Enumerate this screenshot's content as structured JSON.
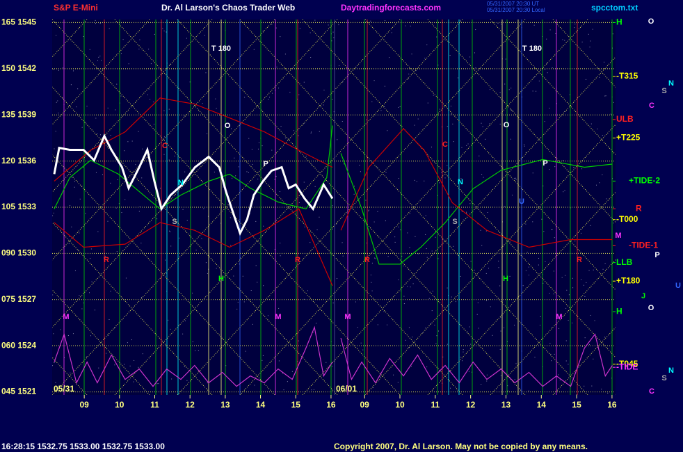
{
  "chart_data": {
    "type": "line",
    "header": {
      "instrument": "S&P E-Mini",
      "title": "Dr. Al Larson's Chaos Trader Web",
      "site": "Daytradingforecasts.com",
      "stamp_ut": "05/31/2007 20:30 UT",
      "stamp_local": "05/31/2007 20:30 Local",
      "file": "spcctom.txt"
    },
    "ylim": [
      1520.8,
      1545.2
    ],
    "yticks": [
      {
        "value": 1545,
        "label": "165 1545"
      },
      {
        "value": 1542,
        "label": "150 1542"
      },
      {
        "value": 1539,
        "label": "135 1539"
      },
      {
        "value": 1536,
        "label": "120 1536"
      },
      {
        "value": 1533,
        "label": "105 1533"
      },
      {
        "value": 1530,
        "label": "090 1530"
      },
      {
        "value": 1527,
        "label": "075 1527"
      },
      {
        "value": 1524,
        "label": "060 1524"
      },
      {
        "value": 1521,
        "label": "045 1521"
      }
    ],
    "grid": true,
    "days": [
      {
        "label": "05/31",
        "xlim": [
          8.09,
          16.1
        ],
        "xticks": [
          {
            "value": 9,
            "label": "09"
          },
          10,
          11,
          12,
          13,
          14,
          15,
          16
        ],
        "series": [
          {
            "color": "#00cc00",
            "x": [
              8.15,
              8.59,
              9.18,
              9.97,
              10.56,
              11.15,
              11.74,
              12.53,
              13.12,
              13.71,
              14.5,
              15.29,
              15.88,
              16.04
            ],
            "values": [
              1532.89,
              1534.92,
              1536.05,
              1535.15,
              1534.02,
              1532.89,
              1533.79,
              1534.69,
              1535.15,
              1534.24,
              1533.34,
              1532.89,
              1534.92,
              1538.31
            ]
          },
          {
            "color": "#cc0000",
            "x": [
              8.15,
              9.18,
              10.16,
              11.15,
              12.13,
              13.12,
              14.11,
              15.09,
              16.04
            ],
            "values": [
              1534.7,
              1536.7,
              1537.9,
              1540.1,
              1539.7,
              1538.8,
              1537.9,
              1536.7,
              1535.6
            ]
          },
          {
            "color": "#cc0000",
            "x": [
              8.15,
              8.98,
              10.16,
              11.15,
              12.13,
              13.12,
              14.11,
              15.09,
              16.04
            ],
            "values": [
              1532.0,
              1530.4,
              1530.6,
              1532.0,
              1531.5,
              1530.4,
              1531.5,
              1532.9,
              1527.9
            ]
          },
          {
            "color": "#cc33cc",
            "x": [
              8.15,
              8.43,
              8.78,
              9.08,
              9.37,
              9.77,
              10.16,
              10.56,
              10.95,
              11.34,
              11.74,
              12.13,
              12.53,
              12.92,
              13.32,
              13.71,
              14.11,
              14.5,
              14.9,
              15.29,
              15.53,
              15.79,
              16.04
            ],
            "values": [
              1522.94,
              1524.75,
              1521.59,
              1522.94,
              1521.59,
              1523.4,
              1521.81,
              1522.49,
              1521.36,
              1522.49,
              1521.81,
              1522.72,
              1521.59,
              1522.27,
              1521.36,
              1522.04,
              1521.59,
              1522.49,
              1521.81,
              1523.85,
              1525.2,
              1522.04,
              1522.94
            ]
          },
          {
            "color": "#ffffff",
            "x": [
              8.15,
              8.29,
              8.59,
              8.98,
              9.28,
              9.57,
              9.77,
              10.07,
              10.26,
              10.56,
              10.79,
              10.99,
              11.19,
              11.45,
              11.78,
              12.14,
              12.53,
              12.83,
              13.02,
              13.22,
              13.42,
              13.62,
              13.81,
              14.07,
              14.31,
              14.6,
              14.8,
              15.0,
              15.25,
              15.49,
              15.79,
              16.04
            ],
            "values": [
              1535.15,
              1536.86,
              1536.73,
              1536.73,
              1536.05,
              1537.63,
              1536.73,
              1535.6,
              1534.24,
              1535.6,
              1536.73,
              1534.69,
              1532.89,
              1533.79,
              1534.47,
              1535.6,
              1536.28,
              1535.6,
              1534.02,
              1532.66,
              1531.31,
              1532.21,
              1533.79,
              1534.69,
              1535.37,
              1535.6,
              1534.24,
              1534.47,
              1533.57,
              1532.89,
              1534.47,
              1533.57
            ]
          }
        ]
      },
      {
        "label": "06/01",
        "xlim": [
          8.15,
          16.1
        ],
        "xticks": [
          {
            "value": 9,
            "label": "09"
          },
          10,
          11,
          12,
          13,
          14,
          15,
          16
        ],
        "series": [
          {
            "color": "#00cc00",
            "x": [
              8.33,
              8.92,
              9.41,
              10.0,
              10.59,
              11.28,
              12.07,
              12.86,
              14.04,
              15.22,
              16.01
            ],
            "values": [
              1536.5,
              1532.9,
              1529.3,
              1529.3,
              1530.4,
              1532.0,
              1534.2,
              1535.4,
              1536.1,
              1535.6,
              1535.8
            ]
          },
          {
            "color": "#cc0000",
            "x": [
              8.33,
              9.12,
              10.1,
              10.69,
              11.48,
              12.46,
              13.65,
              14.83,
              16.01
            ],
            "values": [
              1531.5,
              1535.6,
              1538.1,
              1536.7,
              1533.3,
              1531.5,
              1530.4,
              1530.9,
              1530.9
            ]
          },
          {
            "color": "#cc33cc",
            "x": [
              8.33,
              8.63,
              8.92,
              9.31,
              9.71,
              10.1,
              10.5,
              10.89,
              11.28,
              11.68,
              12.07,
              12.46,
              12.86,
              13.25,
              13.65,
              14.04,
              14.43,
              14.83,
              15.22,
              15.52,
              15.81,
              16.01
            ],
            "values": [
              1524.5,
              1521.81,
              1522.94,
              1521.59,
              1523.17,
              1522.04,
              1523.4,
              1521.81,
              1522.72,
              1521.59,
              1522.94,
              1521.81,
              1522.49,
              1521.59,
              1522.27,
              1521.36,
              1522.04,
              1521.36,
              1523.85,
              1524.75,
              1522.04,
              1522.72
            ]
          }
        ]
      }
    ],
    "levels": [
      {
        "text": "H",
        "value": 1545.0,
        "color": "#00ff00"
      },
      {
        "text": "-T315",
        "value": 1541.5,
        "color": "#ffff00"
      },
      {
        "text": "ULB",
        "value": 1538.7,
        "color": "#ff2020"
      },
      {
        "text": "+T225",
        "value": 1537.5,
        "color": "#ffff00"
      },
      {
        "text": "+TIDE-2",
        "value": 1534.7,
        "color": "#00ff00"
      },
      {
        "text": "R",
        "value": 1532.9,
        "color": "#ff2020"
      },
      {
        "text": "-T000",
        "value": 1532.2,
        "color": "#ffff00"
      },
      {
        "text": "-TIDE-1",
        "value": 1530.5,
        "color": "#ff2020"
      },
      {
        "text": "LLB",
        "value": 1529.4,
        "color": "#00ff00"
      },
      {
        "text": "+T180",
        "value": 1528.2,
        "color": "#ffff00"
      },
      {
        "text": "H",
        "value": 1526.2,
        "color": "#00ff00"
      },
      {
        "text": "-T045",
        "value": 1522.8,
        "color": "#ffff00"
      },
      {
        "text": "-TIDE",
        "value": 1522.6,
        "color": "#ff33ff"
      }
    ],
    "annotations": [
      {
        "text": "T 180",
        "color": "#ffffff"
      },
      {
        "text": "T 180",
        "color": "#ffffff"
      },
      {
        "text": "O",
        "color": "#ffffff"
      },
      {
        "text": "O",
        "color": "#ffffff"
      },
      {
        "text": "P",
        "color": "#ffffff"
      },
      {
        "text": "P",
        "color": "#ffffff"
      },
      {
        "text": "N",
        "color": "#00ffff"
      },
      {
        "text": "N",
        "color": "#00ffff"
      },
      {
        "text": "S",
        "color": "#aaaaaa"
      },
      {
        "text": "S",
        "color": "#aaaaaa"
      },
      {
        "text": "C",
        "color": "#ff2020"
      },
      {
        "text": "C",
        "color": "#ff2020"
      },
      {
        "text": "M",
        "color": "#ff33ff"
      },
      {
        "text": "M",
        "color": "#ff33ff"
      },
      {
        "text": "M",
        "color": "#ff33ff"
      },
      {
        "text": "M",
        "color": "#ff33ff"
      },
      {
        "text": "R",
        "color": "#ff2020"
      },
      {
        "text": "R",
        "color": "#ff2020"
      },
      {
        "text": "R",
        "color": "#ff2020"
      },
      {
        "text": "R",
        "color": "#ff2020"
      },
      {
        "text": "H",
        "color": "#00ff00"
      },
      {
        "text": "H",
        "color": "#00ff00"
      },
      {
        "text": "U",
        "color": "#3366ff"
      },
      {
        "text": "M",
        "color": "#ff33ff"
      }
    ],
    "glyphs": [
      {
        "text": "O",
        "color": "#ffffff"
      },
      {
        "text": "N",
        "color": "#00ffff"
      },
      {
        "text": "S",
        "color": "#aaaaaa"
      },
      {
        "text": "C",
        "color": "#ff33ff"
      },
      {
        "text": "P",
        "color": "#ffffff"
      },
      {
        "text": "U",
        "color": "#3366ff"
      },
      {
        "text": "J",
        "color": "#00ff00"
      },
      {
        "text": "O",
        "color": "#ffffff"
      },
      {
        "text": "N",
        "color": "#00ffff"
      },
      {
        "text": "S",
        "color": "#aaaaaa"
      },
      {
        "text": "C",
        "color": "#ff33ff"
      }
    ],
    "status": "16:28:15  1532.75  1533.00  1532.75  1533.00",
    "copyright": "Copyright 2007, Dr. Al Larson. May not be copied by any means."
  }
}
